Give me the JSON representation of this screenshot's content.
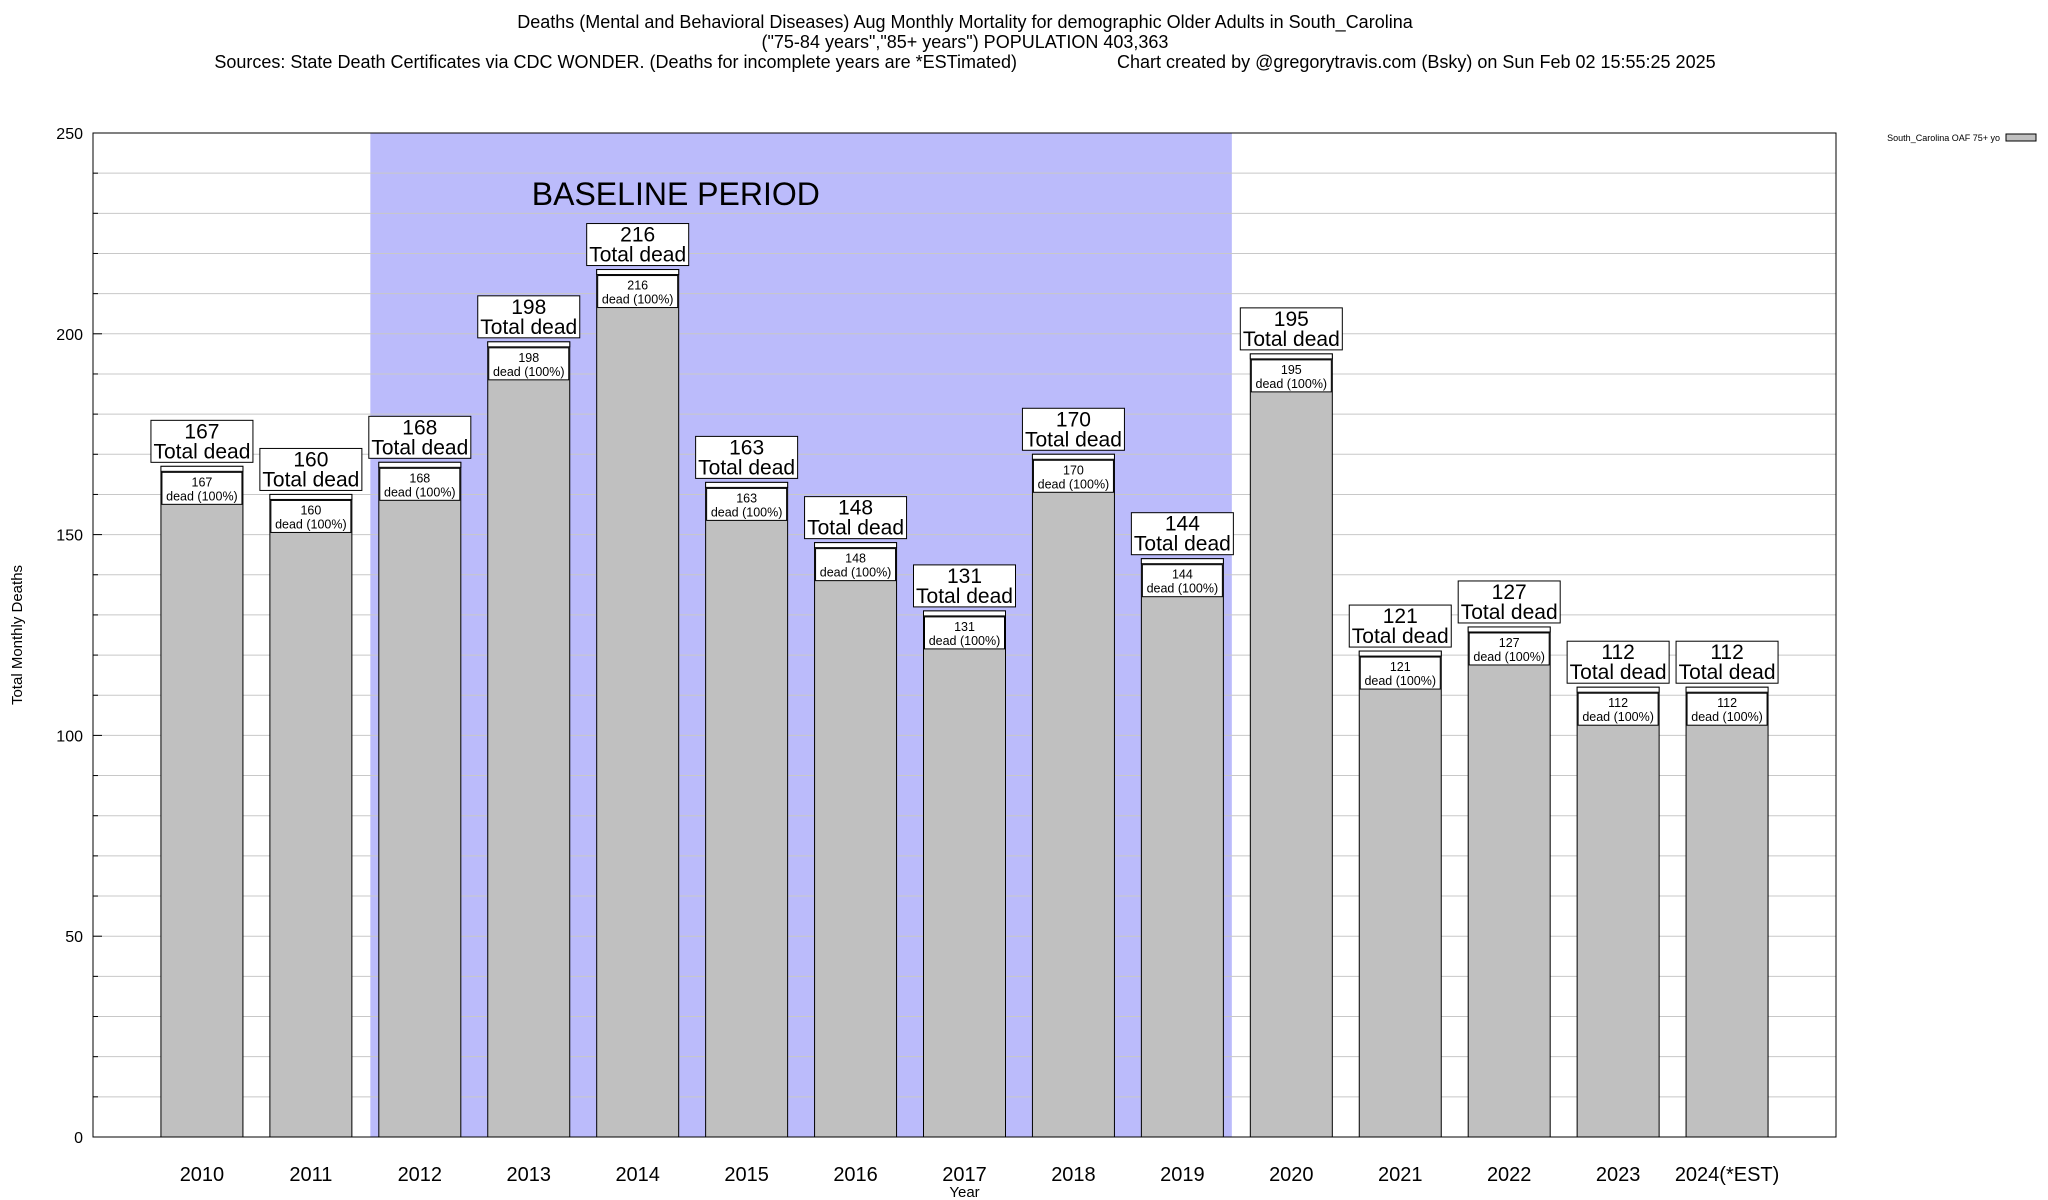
{
  "chart_data": {
    "type": "bar",
    "title_line1": "Deaths (Mental and Behavioral Diseases) Aug Monthly Mortality for demographic Older Adults in South_Carolina",
    "title_line2": "(\"75-84 years\",\"85+ years\") POPULATION 403,363",
    "sources": "Sources: State Death Certificates via CDC WONDER. (Deaths for incomplete years are *ESTimated)",
    "credit": "Chart created by @gregorytravis.com (Bsky) on Sun Feb 02 15:55:25 2025",
    "xlabel": "Year",
    "ylabel": "Total Monthly Deaths",
    "ylim": [
      0,
      250
    ],
    "yticks": [
      0,
      50,
      100,
      150,
      200,
      250
    ],
    "grid": true,
    "categories": [
      "2010",
      "2011",
      "2012",
      "2013",
      "2014",
      "2015",
      "2016",
      "2017",
      "2018",
      "2019",
      "2020",
      "2021",
      "2022",
      "2023",
      "2024(*EST)"
    ],
    "series": [
      {
        "name": "South_Carolina OAF 75+ yo",
        "color": "#c0c0c0",
        "values": [
          167,
          160,
          168,
          198,
          216,
          163,
          148,
          131,
          170,
          144,
          195,
          121,
          127,
          112,
          112
        ]
      }
    ],
    "total_label": "Total dead",
    "inner_label": "dead (100%)",
    "baseline": {
      "label": "BASELINE PERIOD",
      "from": "2012",
      "to": "2019",
      "color": "#bbbbfb"
    },
    "legend_position": "top-right"
  }
}
